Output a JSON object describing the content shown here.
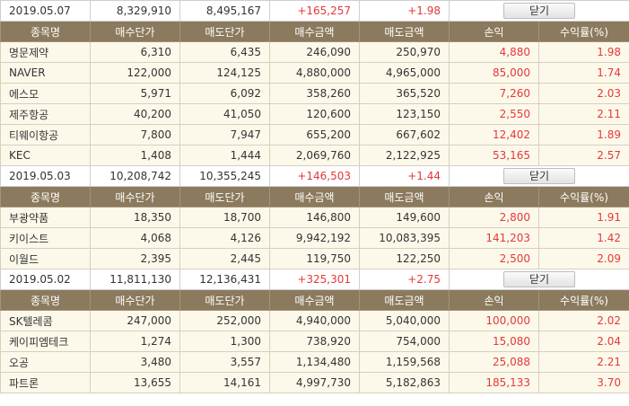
{
  "columns": [
    "종목명",
    "매수단가",
    "매도단가",
    "매수금액",
    "매도금액",
    "손익",
    "수익률(%)"
  ],
  "close_label": "닫기",
  "groups": [
    {
      "date": "2019.05.07",
      "buy_amount": "8,329,910",
      "sell_amount": "8,495,167",
      "profit": "+165,257",
      "rate": "+1.98",
      "rows": [
        {
          "name": "명문제약",
          "buy_price": "6,310",
          "sell_price": "6,435",
          "buy_amount": "246,090",
          "sell_amount": "250,970",
          "profit": "4,880",
          "rate": "1.98"
        },
        {
          "name": "NAVER",
          "buy_price": "122,000",
          "sell_price": "124,125",
          "buy_amount": "4,880,000",
          "sell_amount": "4,965,000",
          "profit": "85,000",
          "rate": "1.74"
        },
        {
          "name": "에스모",
          "buy_price": "5,971",
          "sell_price": "6,092",
          "buy_amount": "358,260",
          "sell_amount": "365,520",
          "profit": "7,260",
          "rate": "2.03"
        },
        {
          "name": "제주항공",
          "buy_price": "40,200",
          "sell_price": "41,050",
          "buy_amount": "120,600",
          "sell_amount": "123,150",
          "profit": "2,550",
          "rate": "2.11"
        },
        {
          "name": "티웨이항공",
          "buy_price": "7,800",
          "sell_price": "7,947",
          "buy_amount": "655,200",
          "sell_amount": "667,602",
          "profit": "12,402",
          "rate": "1.89"
        },
        {
          "name": "KEC",
          "buy_price": "1,408",
          "sell_price": "1,444",
          "buy_amount": "2,069,760",
          "sell_amount": "2,122,925",
          "profit": "53,165",
          "rate": "2.57"
        }
      ]
    },
    {
      "date": "2019.05.03",
      "buy_amount": "10,208,742",
      "sell_amount": "10,355,245",
      "profit": "+146,503",
      "rate": "+1.44",
      "rows": [
        {
          "name": "부광약품",
          "buy_price": "18,350",
          "sell_price": "18,700",
          "buy_amount": "146,800",
          "sell_amount": "149,600",
          "profit": "2,800",
          "rate": "1.91"
        },
        {
          "name": "키이스트",
          "buy_price": "4,068",
          "sell_price": "4,126",
          "buy_amount": "9,942,192",
          "sell_amount": "10,083,395",
          "profit": "141,203",
          "rate": "1.42"
        },
        {
          "name": "이월드",
          "buy_price": "2,395",
          "sell_price": "2,445",
          "buy_amount": "119,750",
          "sell_amount": "122,250",
          "profit": "2,500",
          "rate": "2.09"
        }
      ]
    },
    {
      "date": "2019.05.02",
      "buy_amount": "11,811,130",
      "sell_amount": "12,136,431",
      "profit": "+325,301",
      "rate": "+2.75",
      "rows": [
        {
          "name": "SK텔레콤",
          "buy_price": "247,000",
          "sell_price": "252,000",
          "buy_amount": "4,940,000",
          "sell_amount": "5,040,000",
          "profit": "100,000",
          "rate": "2.02"
        },
        {
          "name": "케이피엠테크",
          "buy_price": "1,274",
          "sell_price": "1,300",
          "buy_amount": "738,920",
          "sell_amount": "754,000",
          "profit": "15,080",
          "rate": "2.04"
        },
        {
          "name": "오공",
          "buy_price": "3,480",
          "sell_price": "3,557",
          "buy_amount": "1,134,480",
          "sell_amount": "1,159,568",
          "profit": "25,088",
          "rate": "2.21"
        },
        {
          "name": "파트론",
          "buy_price": "13,655",
          "sell_price": "14,161",
          "buy_amount": "4,997,730",
          "sell_amount": "5,182,863",
          "profit": "185,133",
          "rate": "3.70"
        }
      ]
    }
  ]
}
